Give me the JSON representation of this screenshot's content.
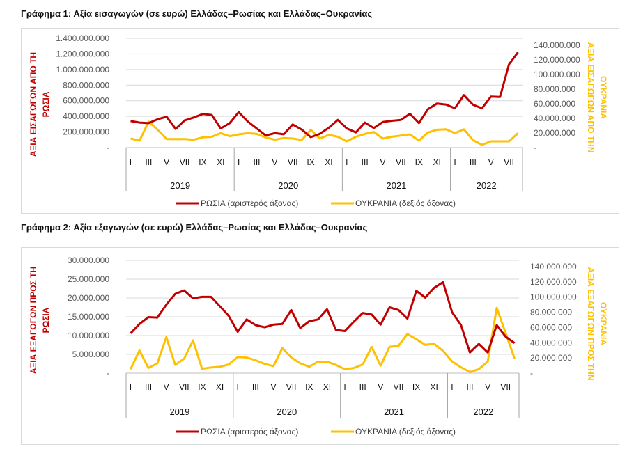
{
  "chart_data": [
    {
      "type": "line",
      "title": "Γράφημα 1: Αξία εισαγωγών (σε ευρώ) Ελλάδας–Ρωσίας και Ελλάδας–Ουκρανίας",
      "ylabel_left": [
        "ΑΞΙΑ ΕΙΣΑΓΩΓΩΝ ΑΠΟ ΤΗ",
        "ΡΩΣΙΑ"
      ],
      "ylabel_right": [
        "ΑΞΙΑ ΕΙΣΑΓΩΓΩΝ ΑΠΟ ΤΗΝ",
        "ΟΥΚΡΑΝΙΑ"
      ],
      "ylim_left": [
        0,
        1400000000
      ],
      "ylim_right": [
        0,
        140000000
      ],
      "left_ticks": [
        "-",
        "200.000.000",
        "400.000.000",
        "600.000.000",
        "800.000.000",
        "1.000.000.000",
        "1.200.000.000",
        "1.400.000.000"
      ],
      "right_ticks": [
        "-",
        "20.000.000",
        "40.000.000",
        "60.000.000",
        "80.000.000",
        "100.000.000",
        "120.000.000",
        "140.000.000"
      ],
      "grid": true,
      "legend": "bottom",
      "years": [
        {
          "label": "2019",
          "months": 12
        },
        {
          "label": "2020",
          "months": 12
        },
        {
          "label": "2021",
          "months": 12
        },
        {
          "label": "2022",
          "months": 8
        }
      ],
      "month_labels": [
        "I",
        "",
        "III",
        "",
        "V",
        "",
        "VII",
        "",
        "IX",
        "",
        "XI",
        ""
      ],
      "series": [
        {
          "name": "ΡΩΣΙΑ (αριστερός άξονας)",
          "axis": "left",
          "color": "#c00000",
          "values": [
            340,
            320,
            313,
            364,
            394,
            239,
            349,
            385,
            430,
            418,
            245,
            313,
            454,
            334,
            245,
            155,
            185,
            170,
            296,
            230,
            134,
            176,
            254,
            355,
            245,
            194,
            320,
            251,
            328,
            343,
            355,
            433,
            313,
            492,
            564,
            552,
            504,
            672,
            549,
            504,
            654,
            648,
            1066,
            1221
          ],
          "unit_multiplier": 1000000
        },
        {
          "name": "ΟΥΚΡΑΝΙΑ (δεξιός άξονας)",
          "axis": "right",
          "color": "#ffc000",
          "values": [
            12.4,
            9.5,
            35.5,
            24.4,
            11.7,
            11.7,
            11.7,
            10.8,
            14,
            14.9,
            19.7,
            15.6,
            18.1,
            19.7,
            18.7,
            14,
            10.8,
            13,
            12.4,
            10.5,
            24.4,
            12.4,
            17.5,
            14.9,
            8.6,
            14.9,
            18.7,
            21.3,
            12.4,
            14.9,
            16.5,
            18.1,
            9.5,
            20.6,
            24.4,
            25,
            19.7,
            25,
            10.2,
            3.8,
            8.6,
            8.6,
            8.6,
            19.7
          ],
          "unit_multiplier": 1000000
        }
      ]
    },
    {
      "type": "line",
      "title": "Γράφημα 2: Αξία εξαγωγών (σε ευρώ) Ελλάδας–Ρωσίας και Ελλάδας–Ουκρανίας",
      "ylabel_left": [
        "ΑΞΙΑ ΕΞΑΓΩΓΩΝ ΠΡΟΣ ΤΗ",
        "ΡΩΣΙΑ"
      ],
      "ylabel_right": [
        "ΑΞΙΑ ΕΞΑΓΩΓΩΝ ΠΡΟΣ ΤΗΝ",
        "ΟΥΚΡΑΝΙΑ"
      ],
      "ylim_left": [
        0,
        30000000
      ],
      "ylim_right": [
        0,
        140000000
      ],
      "left_ticks": [
        "-",
        "5.000.000",
        "10.000.000",
        "15.000.000",
        "20.000.000",
        "25.000.000",
        "30.000.000"
      ],
      "right_ticks": [
        "-",
        "20.000.000",
        "40.000.000",
        "60.000.000",
        "80.000.000",
        "100.000.000",
        "120.000.000",
        "140.000.000"
      ],
      "grid": true,
      "legend": "bottom",
      "years": [
        {
          "label": "2019",
          "months": 12
        },
        {
          "label": "2020",
          "months": 12
        },
        {
          "label": "2021",
          "months": 12
        },
        {
          "label": "2022",
          "months": 8
        }
      ],
      "month_labels": [
        "I",
        "",
        "III",
        "",
        "V",
        "",
        "VII",
        "",
        "IX",
        "",
        "XI",
        ""
      ],
      "series": [
        {
          "name": "ΡΩΣΙΑ (αριστερός άξονας)",
          "axis": "left",
          "color": "#c00000",
          "values": [
            10.6,
            13.1,
            14.9,
            14.8,
            18.2,
            21.1,
            22,
            19.9,
            20.3,
            20.3,
            17.8,
            15.2,
            11,
            14.3,
            12.8,
            12.2,
            12.9,
            13.1,
            16.8,
            12,
            13.8,
            14.3,
            17,
            11.5,
            11.2,
            13.7,
            16,
            15.6,
            12.9,
            17.5,
            16.8,
            14.5,
            21.9,
            20.1,
            22.7,
            24.2,
            16.2,
            12.8,
            5.5,
            7.8,
            5.5,
            12.8,
            9.7,
            8
          ],
          "unit_multiplier": 1000000
        },
        {
          "name": "ΟΥΚΡΑΝΙΑ (δεξιός άξονας)",
          "axis": "right",
          "color": "#ffc000",
          "values": [
            5.2,
            29.8,
            6.8,
            12.9,
            47.4,
            10.8,
            19.1,
            43,
            5.8,
            7.4,
            8.3,
            11.4,
            21.2,
            20.6,
            16.9,
            12.3,
            9.2,
            32.9,
            20.6,
            12.9,
            8.3,
            15.1,
            15.1,
            10.8,
            5.2,
            6.8,
            11.4,
            34.5,
            9.8,
            34.5,
            36,
            51.4,
            44.6,
            37.2,
            38.5,
            29.2,
            15.4,
            7.7,
            1.5,
            5.2,
            15.1,
            85.8,
            52.9,
            19.1
          ],
          "unit_multiplier": 1000000
        }
      ]
    }
  ]
}
